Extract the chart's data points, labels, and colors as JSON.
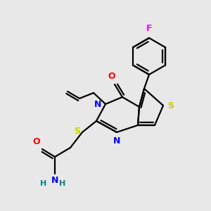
{
  "background_color": "#e8e8e8",
  "bond_color": "#000000",
  "atom_colors": {
    "N": "#0000ff",
    "O": "#ff0000",
    "S": "#cccc00",
    "F": "#ff00ff",
    "H": "#008080"
  },
  "figsize": [
    3.0,
    3.0
  ],
  "dpi": 100
}
